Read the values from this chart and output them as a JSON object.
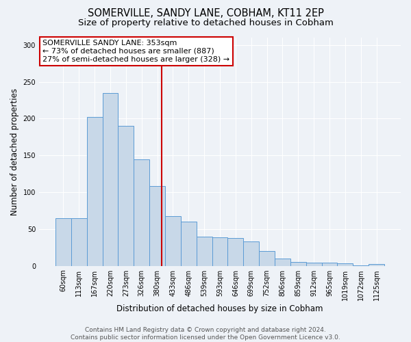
{
  "title": "SOMERVILLE, SANDY LANE, COBHAM, KT11 2EP",
  "subtitle": "Size of property relative to detached houses in Cobham",
  "xlabel": "Distribution of detached houses by size in Cobham",
  "ylabel": "Number of detached properties",
  "categories": [
    "60sqm",
    "113sqm",
    "167sqm",
    "220sqm",
    "273sqm",
    "326sqm",
    "380sqm",
    "433sqm",
    "486sqm",
    "539sqm",
    "593sqm",
    "646sqm",
    "699sqm",
    "752sqm",
    "806sqm",
    "859sqm",
    "912sqm",
    "965sqm",
    "1019sqm",
    "1072sqm",
    "1125sqm"
  ],
  "values": [
    65,
    65,
    202,
    235,
    190,
    145,
    108,
    67,
    60,
    40,
    39,
    38,
    33,
    20,
    10,
    5,
    4,
    4,
    3,
    1,
    2
  ],
  "bar_color": "#c8d8e8",
  "bar_edge_color": "#5b9bd5",
  "red_line_x": 6.27,
  "red_line_color": "#cc0000",
  "annotation_text": "SOMERVILLE SANDY LANE: 353sqm\n← 73% of detached houses are smaller (887)\n27% of semi-detached houses are larger (328) →",
  "annotation_box_color": "#ffffff",
  "annotation_box_edge": "#cc0000",
  "ylim": [
    0,
    310
  ],
  "yticks": [
    0,
    50,
    100,
    150,
    200,
    250,
    300
  ],
  "footer_text": "Contains HM Land Registry data © Crown copyright and database right 2024.\nContains public sector information licensed under the Open Government Licence v3.0.",
  "background_color": "#eef2f7",
  "title_fontsize": 10.5,
  "subtitle_fontsize": 9.5,
  "label_fontsize": 8.5,
  "tick_fontsize": 7,
  "footer_fontsize": 6.5,
  "annotation_fontsize": 8
}
